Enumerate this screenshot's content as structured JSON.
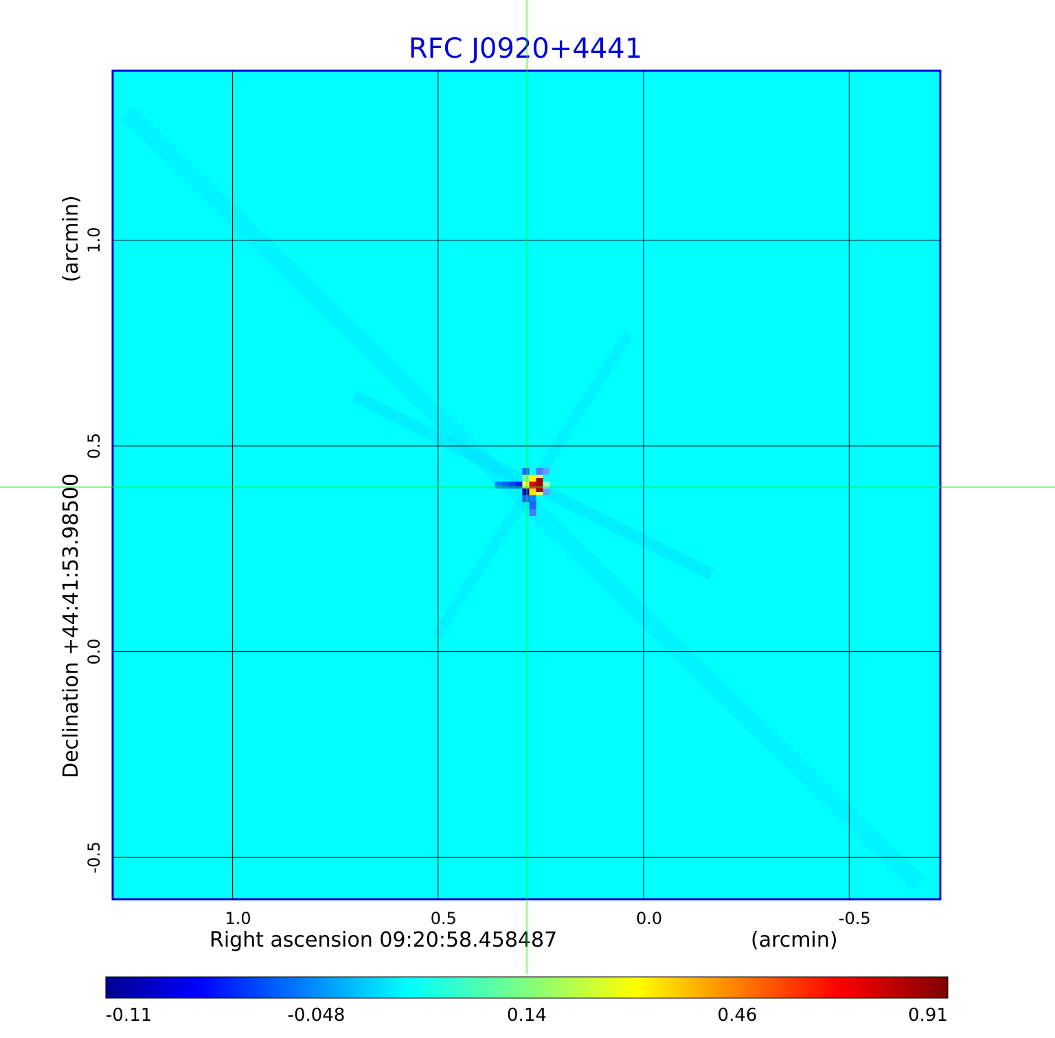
{
  "chart_data": {
    "type": "heatmap",
    "title": "RFC J0920+4441",
    "xlabel": "Right ascension  09:20:58.458487",
    "xunit": "(arcmin)",
    "ylabel": "Declination  +44:41:53.98500",
    "yunit": "(arcmin)",
    "x_ticks": [
      1.0,
      0.5,
      0.0,
      -0.5
    ],
    "x_tick_labels": [
      "1.0",
      "0.5",
      "0.0",
      "-0.5"
    ],
    "y_ticks": [
      1.0,
      0.5,
      0.0,
      -0.5
    ],
    "y_tick_labels": [
      "1.0",
      "0.5",
      "0.0",
      "-0.5"
    ],
    "xlim": [
      1.29,
      -0.72
    ],
    "ylim": [
      -0.6,
      1.41
    ],
    "grid": true,
    "crosshair": {
      "x": 0.284,
      "y": 0.4,
      "color": "#00ff00"
    },
    "colorbar": {
      "ticks": [
        -0.11,
        -0.048,
        0.14,
        0.46,
        0.91
      ],
      "tick_labels": [
        "-0.11",
        "-0.048",
        "0.14",
        "0.46",
        "0.91"
      ],
      "colormap": "jet"
    },
    "peak": {
      "x": 0.27,
      "y": 0.405,
      "value": 0.91
    },
    "background_value": 0.05
  }
}
